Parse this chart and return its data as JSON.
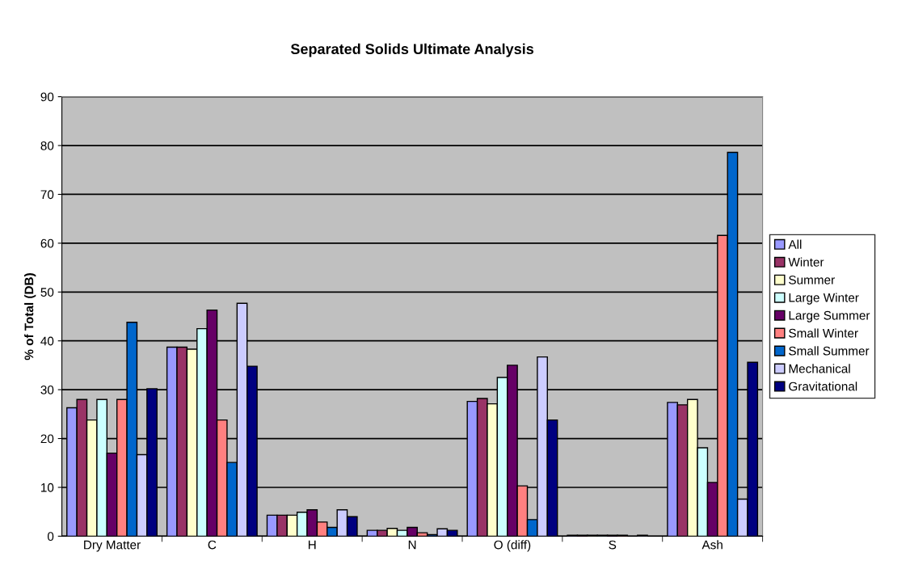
{
  "chart_data": {
    "type": "bar",
    "title": "Separated Solids Ultimate Analysis",
    "ylabel": "% of Total (DB)",
    "categories": [
      "Dry Matter",
      "C",
      "H",
      "N",
      "O (diff)",
      "S",
      "Ash"
    ],
    "series": [
      {
        "name": "All",
        "color": "#9999ff",
        "values": [
          26.3,
          38.7,
          4.3,
          1.2,
          27.6,
          0.2,
          27.4
        ]
      },
      {
        "name": "Winter",
        "color": "#993366",
        "values": [
          28,
          38.7,
          4.3,
          1.2,
          28.2,
          0.2,
          26.9
        ]
      },
      {
        "name": "Summer",
        "color": "#ffffcc",
        "values": [
          23.8,
          38.3,
          4.3,
          1.6,
          27.1,
          0.2,
          28
        ]
      },
      {
        "name": "Large Winter",
        "color": "#ccffff",
        "values": [
          28,
          42.5,
          4.9,
          1.2,
          32.5,
          0.2,
          18.1
        ]
      },
      {
        "name": "Large Summer",
        "color": "#660066",
        "values": [
          17,
          46.3,
          5.4,
          1.8,
          35,
          0.2,
          11
        ]
      },
      {
        "name": "Small Winter",
        "color": "#ff8080",
        "values": [
          28,
          23.8,
          2.9,
          0.7,
          10.3,
          0.2,
          61.6
        ]
      },
      {
        "name": "Small Summer",
        "color": "#0066cc",
        "values": [
          43.8,
          15.1,
          1.8,
          0.3,
          3.4,
          null,
          78.6
        ]
      },
      {
        "name": "Mechanical",
        "color": "#ccccff",
        "values": [
          16.7,
          47.7,
          5.4,
          1.5,
          36.7,
          0.2,
          7.6
        ]
      },
      {
        "name": "Gravitational",
        "color": "#000080",
        "values": [
          30.2,
          34.8,
          4,
          1.2,
          23.8,
          null,
          35.6
        ]
      }
    ],
    "ylim": [
      0,
      90
    ],
    "yticks": [
      0,
      10,
      20,
      30,
      40,
      50,
      60,
      70,
      80,
      90
    ],
    "grid": "y",
    "legend": "right"
  }
}
